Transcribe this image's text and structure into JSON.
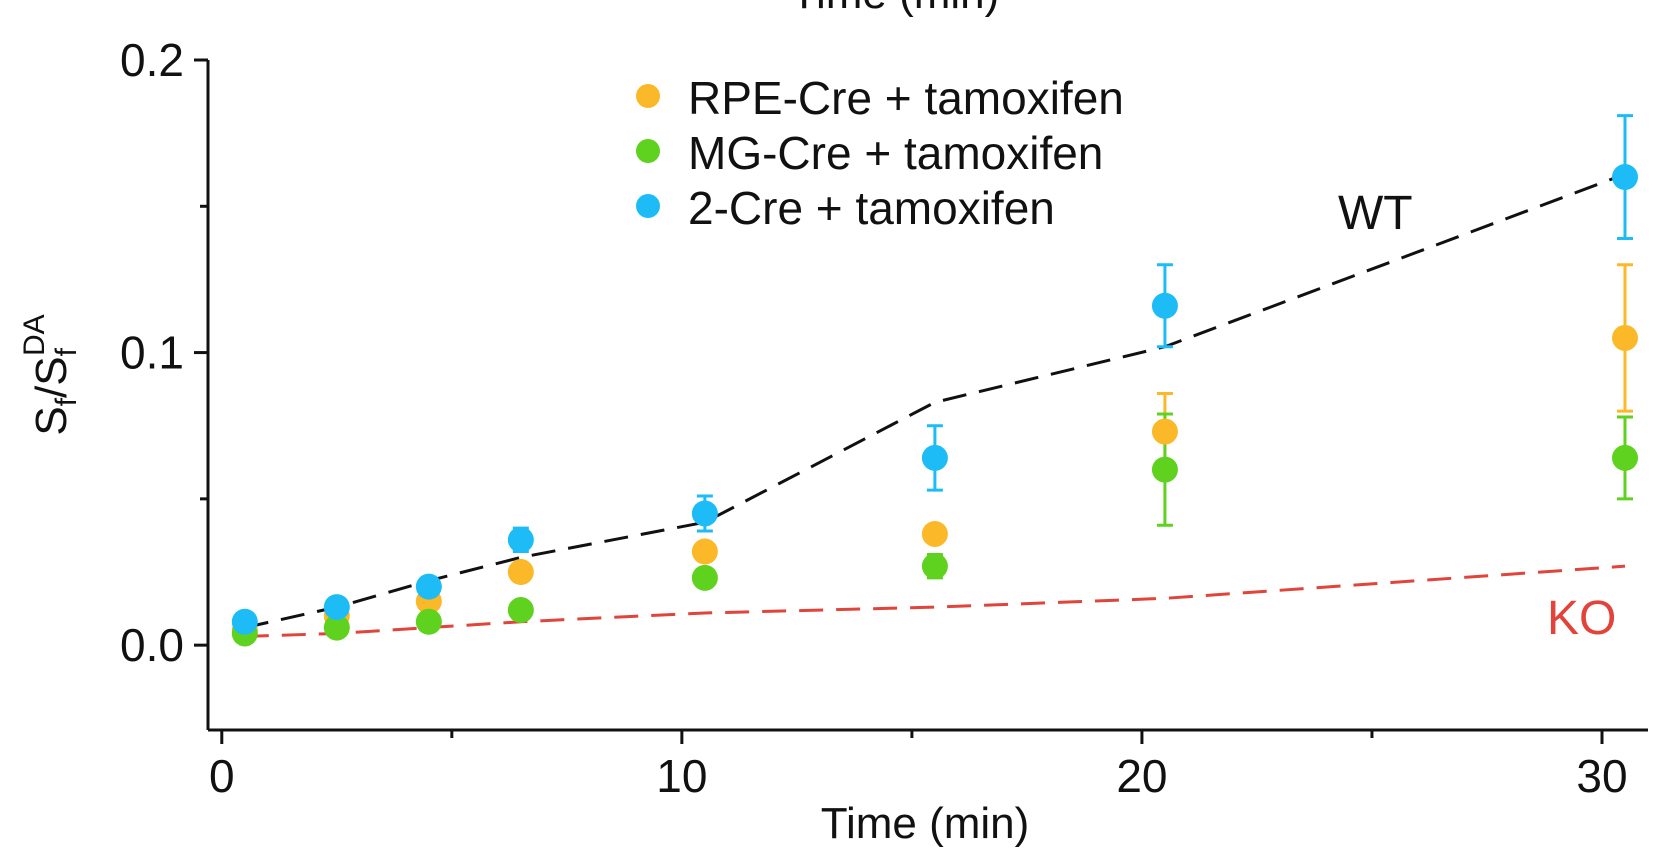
{
  "chart_data": {
    "type": "scatter",
    "top_clipped_label": "Time (min)",
    "xlabel": "Time (min)",
    "ylabel": "Sf/SfDA",
    "ylabel_parts": {
      "base": "S",
      "sub1": "f",
      "slash": "/S",
      "sub2": "f",
      "sup": "DA"
    },
    "xlim": [
      -0.3,
      31.0
    ],
    "ylim": [
      -0.029,
      0.2
    ],
    "xticks": [
      0,
      10,
      20,
      30
    ],
    "xtick_labels": [
      "0",
      "10",
      "20",
      "30"
    ],
    "xminor": [
      5,
      15,
      25
    ],
    "yticks": [
      0.0,
      0.1,
      0.2
    ],
    "ytick_labels": [
      "0.0",
      "0.1",
      "0.2"
    ],
    "yminor": [
      0.05,
      0.15
    ],
    "legend_position": "top-center",
    "series": [
      {
        "name": "RPE-Cre + tamoxifen",
        "color": "#FBB828",
        "x": [
          0.5,
          2.5,
          4.5,
          6.5,
          10.5,
          15.5,
          20.5,
          30.5
        ],
        "y": [
          0.005,
          0.01,
          0.015,
          0.025,
          0.032,
          0.038,
          0.073,
          0.105
        ],
        "err": [
          0,
          0,
          0,
          0,
          0.003,
          0.002,
          0.013,
          0.025
        ]
      },
      {
        "name": "MG-Cre + tamoxifen",
        "color": "#5FD11F",
        "x": [
          0.5,
          2.5,
          4.5,
          6.5,
          10.5,
          15.5,
          20.5,
          30.5
        ],
        "y": [
          0.004,
          0.006,
          0.008,
          0.012,
          0.023,
          0.027,
          0.06,
          0.064
        ],
        "err": [
          0,
          0,
          0,
          0,
          0.003,
          0.004,
          0.019,
          0.014
        ]
      },
      {
        "name": "2-Cre + tamoxifen",
        "color": "#1DBCF6",
        "x": [
          0.5,
          2.5,
          4.5,
          6.5,
          10.5,
          15.5,
          20.5,
          30.5
        ],
        "y": [
          0.008,
          0.013,
          0.02,
          0.036,
          0.045,
          0.064,
          0.116,
          0.16
        ],
        "err": [
          0,
          0,
          0,
          0.004,
          0.006,
          0.011,
          0.014,
          0.021
        ]
      }
    ],
    "reference_lines": [
      {
        "name": "WT",
        "color": "#111111",
        "x": [
          0.5,
          2.5,
          4.5,
          6.5,
          10.5,
          15.5,
          20.5,
          30.5
        ],
        "y": [
          0.006,
          0.013,
          0.022,
          0.03,
          0.042,
          0.083,
          0.102,
          0.161
        ]
      },
      {
        "name": "KO",
        "color": "#E0443A",
        "x": [
          0.5,
          2.5,
          4.5,
          6.5,
          10.5,
          15.5,
          20.5,
          30.5
        ],
        "y": [
          0.003,
          0.004,
          0.006,
          0.008,
          0.011,
          0.013,
          0.016,
          0.027
        ]
      }
    ],
    "annotations": [
      {
        "text": "WT",
        "color": "#111111"
      },
      {
        "text": "KO",
        "color": "#E0443A"
      }
    ]
  }
}
